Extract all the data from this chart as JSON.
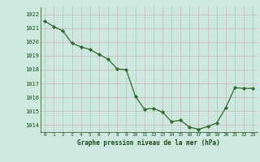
{
  "title": "Graphe pression niveau de la mer (hPa)",
  "x_values": [
    0,
    1,
    2,
    3,
    4,
    5,
    6,
    7,
    8,
    9,
    10,
    11,
    12,
    13,
    14,
    15,
    16,
    17,
    18,
    19,
    20,
    21,
    22,
    23
  ],
  "y_values": [
    1021.5,
    1021.1,
    1020.8,
    1019.9,
    1019.65,
    1019.45,
    1019.1,
    1018.75,
    1018.05,
    1018.0,
    1016.1,
    1015.15,
    1015.2,
    1014.95,
    1014.25,
    1014.35,
    1013.85,
    1013.7,
    1013.9,
    1014.15,
    1015.25,
    1016.7,
    1016.65,
    1016.65
  ],
  "ylim": [
    1013.5,
    1022.5
  ],
  "yticks": [
    1014,
    1015,
    1016,
    1017,
    1018,
    1019,
    1020,
    1021,
    1022
  ],
  "xticks": [
    0,
    1,
    2,
    3,
    4,
    5,
    6,
    7,
    8,
    9,
    10,
    11,
    12,
    13,
    14,
    15,
    16,
    17,
    18,
    19,
    20,
    21,
    22,
    23
  ],
  "line_color": "#2d6a2d",
  "marker_color": "#2d6a2d",
  "bg_color": "#cce8df",
  "grid_color_h": "#b8d8ce",
  "grid_color_v": "#f0f0f0",
  "label_color": "#1a4a1a",
  "title_color": "#1a4a1a",
  "tick_color": "#1a4a1a"
}
